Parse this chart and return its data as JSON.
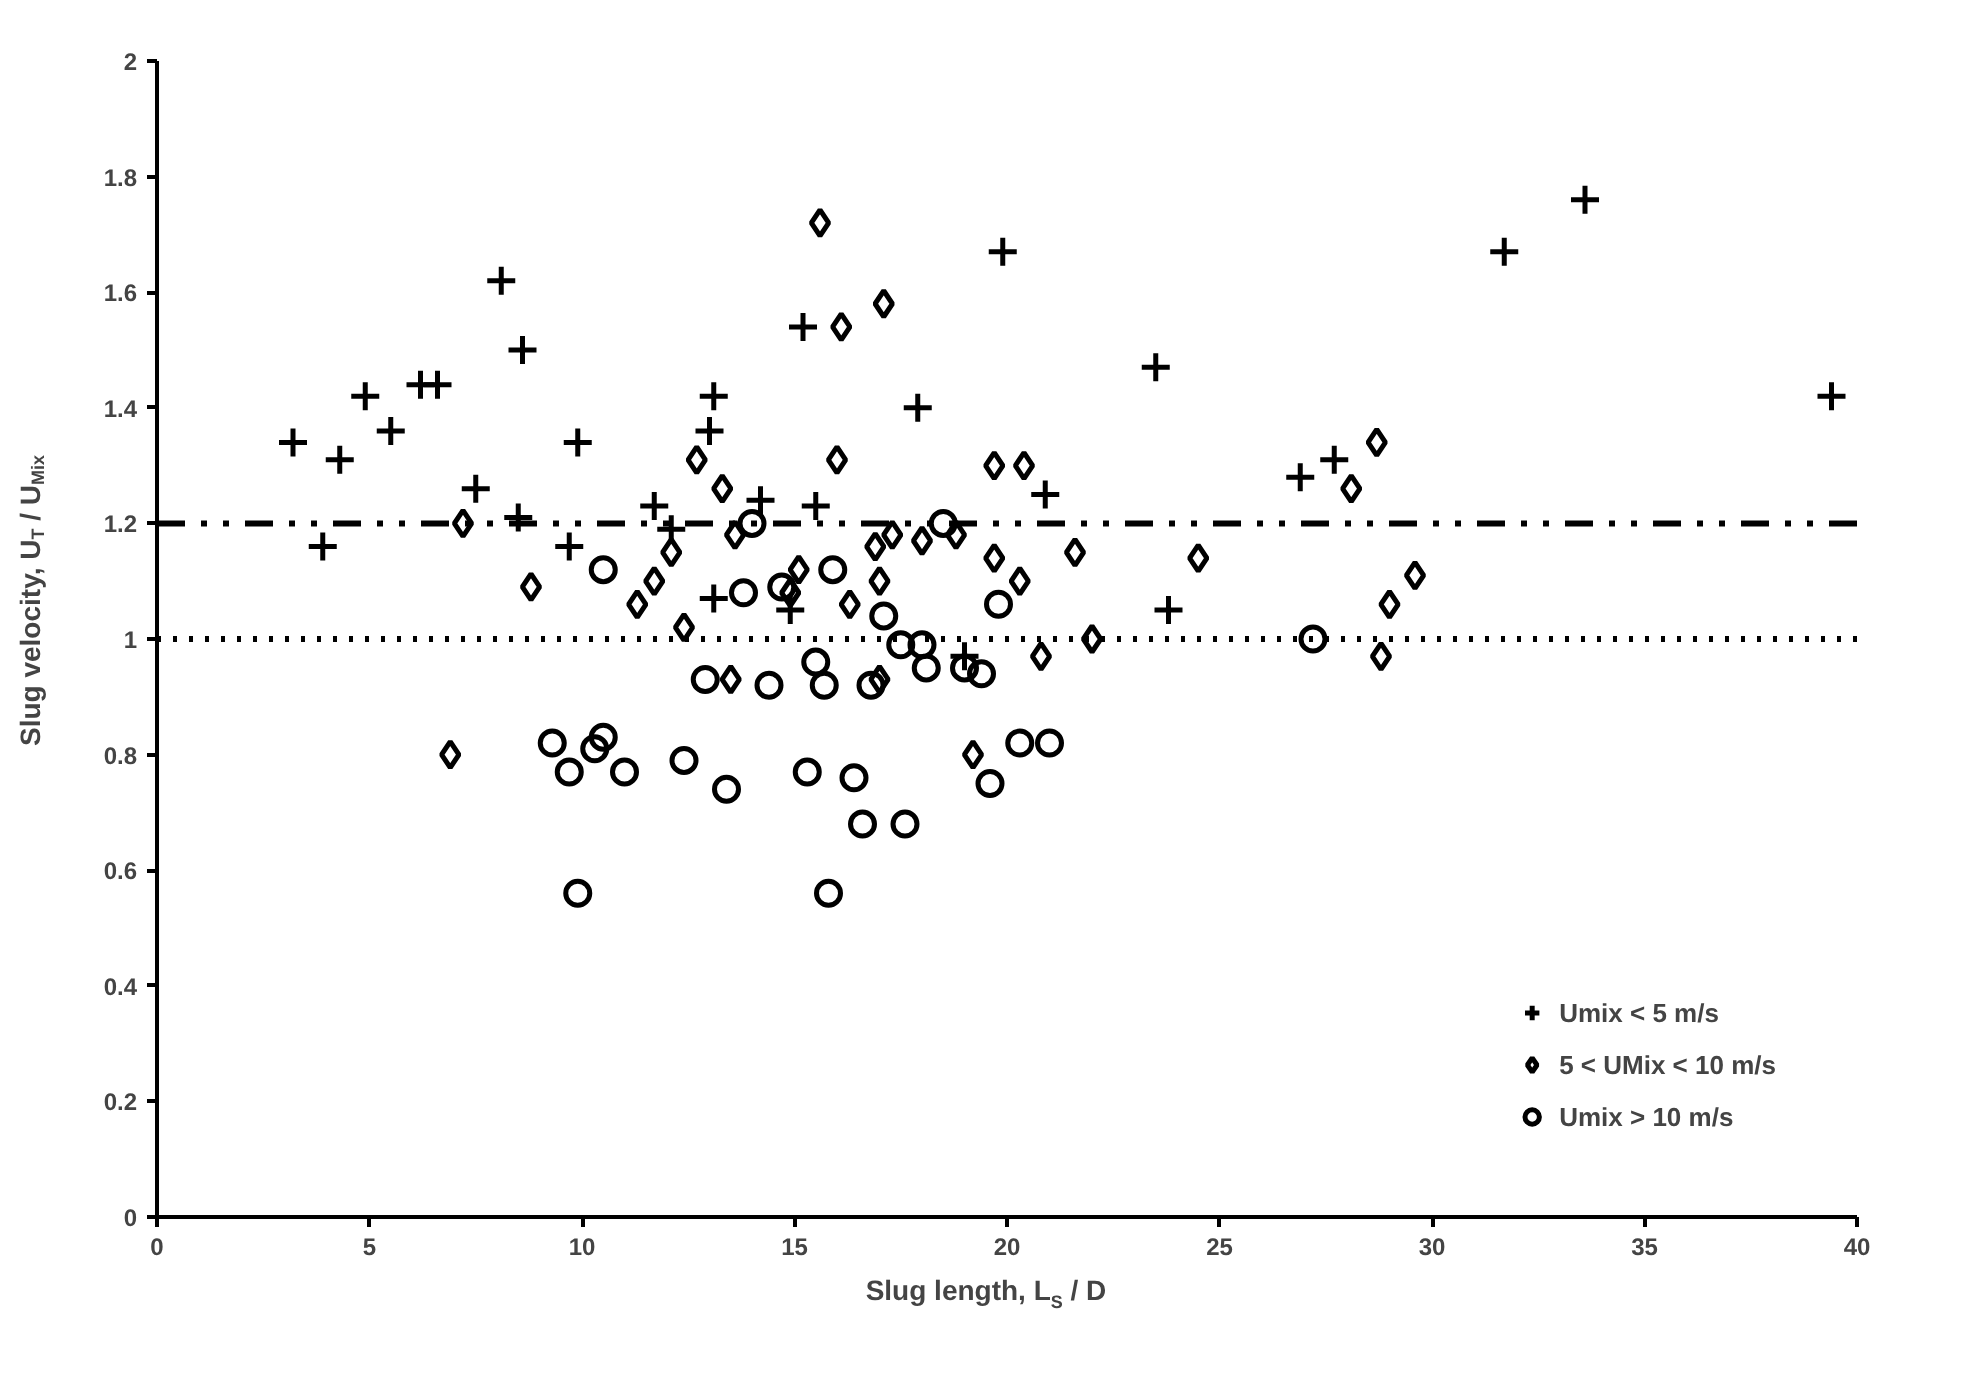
{
  "chart_data": {
    "type": "scatter",
    "xlabel": "Slug length, L$_{S}$ / D",
    "ylabel": "Slug velocity, U$_{T}$ / U$_{Mix}$",
    "xlim": [
      0,
      40
    ],
    "xticks": [
      0,
      5,
      10,
      15,
      20,
      25,
      30,
      35,
      40
    ],
    "ylim": [
      0,
      2
    ],
    "yticks": [
      0,
      0.2,
      0.4,
      0.6,
      0.8,
      1,
      1.2,
      1.4,
      1.6,
      1.8,
      2
    ],
    "grid": false,
    "legend": "bottom right",
    "ref_lines": [
      {
        "axis": "y",
        "value": 1.2,
        "line_style": "dashdot",
        "color": "#000000"
      },
      {
        "axis": "y",
        "value": 1.0,
        "line_style": "dotted",
        "color": "#000000"
      }
    ],
    "series": [
      {
        "name": "Umix < 5 m/s",
        "color": "#000000",
        "marker": "cross",
        "x": [
          3.2,
          3.9,
          4.3,
          4.9,
          5.5,
          6.2,
          6.6,
          7.5,
          8.1,
          8.6,
          8.5,
          9.7,
          9.9,
          11.7,
          12.1,
          13.1,
          13.0,
          13.1,
          14.2,
          15.2,
          15.5,
          14.9,
          17.9,
          19.9,
          20.9,
          19.0,
          23.5,
          23.8,
          26.9,
          27.7,
          31.7,
          33.6,
          39.4
        ],
        "values": [
          1.34,
          1.16,
          1.31,
          1.42,
          1.36,
          1.44,
          1.44,
          1.26,
          1.62,
          1.5,
          1.21,
          1.16,
          1.34,
          1.23,
          1.19,
          1.42,
          1.36,
          1.07,
          1.24,
          1.54,
          1.23,
          1.05,
          1.4,
          1.67,
          1.25,
          0.97,
          1.47,
          1.05,
          1.28,
          1.31,
          1.67,
          1.76,
          1.42
        ]
      },
      {
        "name": "5 < UMix < 10 m/s",
        "color": "#000000",
        "marker": "diamond",
        "x": [
          6.9,
          7.2,
          8.8,
          11.3,
          11.7,
          12.1,
          12.4,
          12.7,
          13.3,
          13.6,
          13.5,
          14.9,
          15.1,
          15.6,
          16.0,
          16.1,
          16.3,
          16.9,
          17.0,
          17.0,
          17.1,
          17.3,
          18.0,
          18.8,
          19.2,
          19.7,
          19.7,
          20.3,
          20.4,
          20.8,
          21.6,
          22.0,
          24.5,
          28.1,
          28.7,
          28.8,
          29.0,
          29.6
        ],
        "values": [
          0.8,
          1.2,
          1.09,
          1.06,
          1.1,
          1.15,
          1.02,
          1.31,
          1.26,
          1.18,
          0.93,
          1.08,
          1.12,
          1.72,
          1.31,
          1.54,
          1.06,
          1.16,
          1.1,
          0.93,
          1.58,
          1.18,
          1.17,
          1.18,
          0.8,
          1.3,
          1.14,
          1.1,
          1.3,
          0.97,
          1.15,
          1.0,
          1.14,
          1.26,
          1.34,
          0.97,
          1.06,
          1.11
        ]
      },
      {
        "name": "Umix > 10 m/s",
        "color": "#000000",
        "marker": "circle",
        "x": [
          9.3,
          9.7,
          9.9,
          10.3,
          10.5,
          10.5,
          11.0,
          12.4,
          12.9,
          13.4,
          13.8,
          14.0,
          14.4,
          14.7,
          15.3,
          15.5,
          15.7,
          15.8,
          15.9,
          16.4,
          16.6,
          16.8,
          17.1,
          17.5,
          17.6,
          18.0,
          18.1,
          18.5,
          19.0,
          19.4,
          19.6,
          19.8,
          20.3,
          21.0,
          27.2
        ],
        "values": [
          0.82,
          0.77,
          0.56,
          0.81,
          0.83,
          1.12,
          0.77,
          0.79,
          0.93,
          0.74,
          1.08,
          1.2,
          0.92,
          1.09,
          0.77,
          0.96,
          0.92,
          0.56,
          1.12,
          0.76,
          0.68,
          0.92,
          1.04,
          0.99,
          0.68,
          0.99,
          0.95,
          1.2,
          0.95,
          0.94,
          0.75,
          1.06,
          0.82,
          0.82,
          1.0
        ]
      }
    ]
  }
}
